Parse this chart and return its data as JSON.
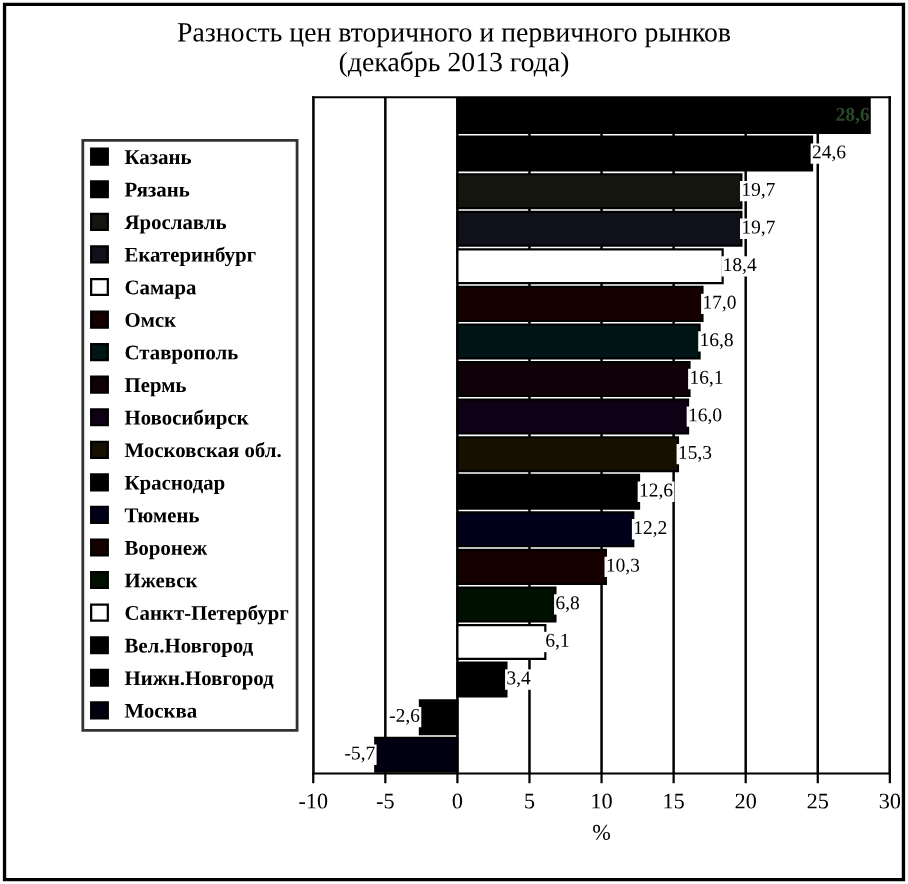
{
  "chart_data": {
    "type": "bar",
    "orientation": "horizontal",
    "title": "Разность цен вторичного и первичного рынков\n(декабрь 2013 года)",
    "xlabel": "%",
    "categories": [
      null,
      null,
      null,
      null,
      null,
      null,
      null,
      null,
      null,
      null,
      null,
      null,
      null,
      null,
      null,
      null,
      null,
      null
    ],
    "series": [
      {
        "name": "Казань",
        "color": "#000000",
        "values": [
          28.6,
          null,
          null,
          null,
          null,
          null,
          null,
          null,
          null,
          null,
          null,
          null,
          null,
          null,
          null,
          null,
          null,
          null
        ],
        "value_labels": [
          "28,6",
          null,
          null,
          null,
          null,
          null,
          null,
          null,
          null,
          null,
          null,
          null,
          null,
          null,
          null,
          null,
          null,
          null
        ]
      },
      {
        "name": "Рязань",
        "color": "#000000",
        "values": [
          null,
          24.6,
          null,
          null,
          null,
          null,
          null,
          null,
          null,
          null,
          null,
          null,
          null,
          null,
          null,
          null,
          null,
          null
        ],
        "value_labels": [
          null,
          "24,6",
          null,
          null,
          null,
          null,
          null,
          null,
          null,
          null,
          null,
          null,
          null,
          null,
          null,
          null,
          null,
          null
        ]
      },
      {
        "name": "Ярославль",
        "color": "#151510",
        "values": [
          null,
          null,
          19.7,
          null,
          null,
          null,
          null,
          null,
          null,
          null,
          null,
          null,
          null,
          null,
          null,
          null,
          null,
          null
        ],
        "value_labels": [
          null,
          null,
          "19,7",
          null,
          null,
          null,
          null,
          null,
          null,
          null,
          null,
          null,
          null,
          null,
          null,
          null,
          null,
          null
        ]
      },
      {
        "name": "Екатеринбург",
        "color": "#10101a",
        "values": [
          null,
          null,
          null,
          19.7,
          null,
          null,
          null,
          null,
          null,
          null,
          null,
          null,
          null,
          null,
          null,
          null,
          null,
          null
        ],
        "value_labels": [
          null,
          null,
          null,
          "19,7",
          null,
          null,
          null,
          null,
          null,
          null,
          null,
          null,
          null,
          null,
          null,
          null,
          null,
          null
        ]
      },
      {
        "name": "Самара",
        "color": "#ffffff",
        "values": [
          null,
          null,
          null,
          null,
          18.4,
          null,
          null,
          null,
          null,
          null,
          null,
          null,
          null,
          null,
          null,
          null,
          null,
          null
        ],
        "value_labels": [
          null,
          null,
          null,
          null,
          "18,4",
          null,
          null,
          null,
          null,
          null,
          null,
          null,
          null,
          null,
          null,
          null,
          null,
          null
        ]
      },
      {
        "name": "Омск",
        "color": "#150000",
        "values": [
          null,
          null,
          null,
          null,
          null,
          17.0,
          null,
          null,
          null,
          null,
          null,
          null,
          null,
          null,
          null,
          null,
          null,
          null
        ],
        "value_labels": [
          null,
          null,
          null,
          null,
          null,
          "17,0",
          null,
          null,
          null,
          null,
          null,
          null,
          null,
          null,
          null,
          null,
          null,
          null
        ]
      },
      {
        "name": "Ставрополь",
        "color": "#001515",
        "values": [
          null,
          null,
          null,
          null,
          null,
          null,
          16.8,
          null,
          null,
          null,
          null,
          null,
          null,
          null,
          null,
          null,
          null,
          null
        ],
        "value_labels": [
          null,
          null,
          null,
          null,
          null,
          null,
          "16,8",
          null,
          null,
          null,
          null,
          null,
          null,
          null,
          null,
          null,
          null,
          null
        ]
      },
      {
        "name": "Пермь",
        "color": "#100008",
        "values": [
          null,
          null,
          null,
          null,
          null,
          null,
          null,
          16.1,
          null,
          null,
          null,
          null,
          null,
          null,
          null,
          null,
          null,
          null
        ],
        "value_labels": [
          null,
          null,
          null,
          null,
          null,
          null,
          null,
          "16,1",
          null,
          null,
          null,
          null,
          null,
          null,
          null,
          null,
          null,
          null
        ]
      },
      {
        "name": "Новосибирск",
        "color": "#100015",
        "values": [
          null,
          null,
          null,
          null,
          null,
          null,
          null,
          null,
          16.0,
          null,
          null,
          null,
          null,
          null,
          null,
          null,
          null,
          null
        ],
        "value_labels": [
          null,
          null,
          null,
          null,
          null,
          null,
          null,
          null,
          "16,0",
          null,
          null,
          null,
          null,
          null,
          null,
          null,
          null,
          null
        ]
      },
      {
        "name": "Московская обл.",
        "color": "#151000",
        "values": [
          null,
          null,
          null,
          null,
          null,
          null,
          null,
          null,
          null,
          15.3,
          null,
          null,
          null,
          null,
          null,
          null,
          null,
          null
        ],
        "value_labels": [
          null,
          null,
          null,
          null,
          null,
          null,
          null,
          null,
          null,
          "15,3",
          null,
          null,
          null,
          null,
          null,
          null,
          null,
          null
        ]
      },
      {
        "name": "Краснодар",
        "color": "#000000",
        "values": [
          null,
          null,
          null,
          null,
          null,
          null,
          null,
          null,
          null,
          null,
          12.6,
          null,
          null,
          null,
          null,
          null,
          null,
          null
        ],
        "value_labels": [
          null,
          null,
          null,
          null,
          null,
          null,
          null,
          null,
          null,
          null,
          "12,6",
          null,
          null,
          null,
          null,
          null,
          null,
          null
        ]
      },
      {
        "name": "Тюмень",
        "color": "#00001a",
        "values": [
          null,
          null,
          null,
          null,
          null,
          null,
          null,
          null,
          null,
          null,
          null,
          12.2,
          null,
          null,
          null,
          null,
          null,
          null
        ],
        "value_labels": [
          null,
          null,
          null,
          null,
          null,
          null,
          null,
          null,
          null,
          null,
          null,
          "12,2",
          null,
          null,
          null,
          null,
          null,
          null
        ]
      },
      {
        "name": "Воронеж",
        "color": "#150000",
        "values": [
          null,
          null,
          null,
          null,
          null,
          null,
          null,
          null,
          null,
          null,
          null,
          null,
          10.3,
          null,
          null,
          null,
          null,
          null
        ],
        "value_labels": [
          null,
          null,
          null,
          null,
          null,
          null,
          null,
          null,
          null,
          null,
          null,
          null,
          "10,3",
          null,
          null,
          null,
          null,
          null
        ]
      },
      {
        "name": "Ижевск",
        "color": "#001000",
        "values": [
          null,
          null,
          null,
          null,
          null,
          null,
          null,
          null,
          null,
          null,
          null,
          null,
          null,
          6.8,
          null,
          null,
          null,
          null
        ],
        "value_labels": [
          null,
          null,
          null,
          null,
          null,
          null,
          null,
          null,
          null,
          null,
          null,
          null,
          null,
          "6,8",
          null,
          null,
          null,
          null
        ]
      },
      {
        "name": "Санкт-Петербург",
        "color": "#ffffff",
        "values": [
          null,
          null,
          null,
          null,
          null,
          null,
          null,
          null,
          null,
          null,
          null,
          null,
          null,
          null,
          6.1,
          null,
          null,
          null
        ],
        "value_labels": [
          null,
          null,
          null,
          null,
          null,
          null,
          null,
          null,
          null,
          null,
          null,
          null,
          null,
          null,
          "6,1",
          null,
          null,
          null
        ]
      },
      {
        "name": "Вел.Новгород",
        "color": "#000000",
        "values": [
          null,
          null,
          null,
          null,
          null,
          null,
          null,
          null,
          null,
          null,
          null,
          null,
          null,
          null,
          null,
          3.4,
          null,
          null
        ],
        "value_labels": [
          null,
          null,
          null,
          null,
          null,
          null,
          null,
          null,
          null,
          null,
          null,
          null,
          null,
          null,
          null,
          "3,4",
          null,
          null
        ]
      },
      {
        "name": "Нижн.Новгород",
        "color": "#000000",
        "values": [
          null,
          null,
          null,
          null,
          null,
          null,
          null,
          null,
          null,
          null,
          null,
          null,
          null,
          null,
          null,
          null,
          -2.6,
          null
        ],
        "value_labels": [
          null,
          null,
          null,
          null,
          null,
          null,
          null,
          null,
          null,
          null,
          null,
          null,
          null,
          null,
          null,
          null,
          "-2,6",
          null
        ]
      },
      {
        "name": "Москва",
        "color": "#000010",
        "values": [
          null,
          null,
          null,
          null,
          null,
          null,
          null,
          null,
          null,
          null,
          null,
          null,
          null,
          null,
          null,
          null,
          null,
          -5.7
        ],
        "value_labels": [
          null,
          null,
          null,
          null,
          null,
          null,
          null,
          null,
          null,
          null,
          null,
          null,
          null,
          null,
          null,
          null,
          null,
          "-5,7"
        ]
      }
    ],
    "xlim": [
      -10,
      30
    ],
    "xticks": [
      -10,
      -5,
      0,
      5,
      10,
      15,
      20,
      25,
      30
    ],
    "grid": "x",
    "legend": "left",
    "tick_labels": "x"
  }
}
